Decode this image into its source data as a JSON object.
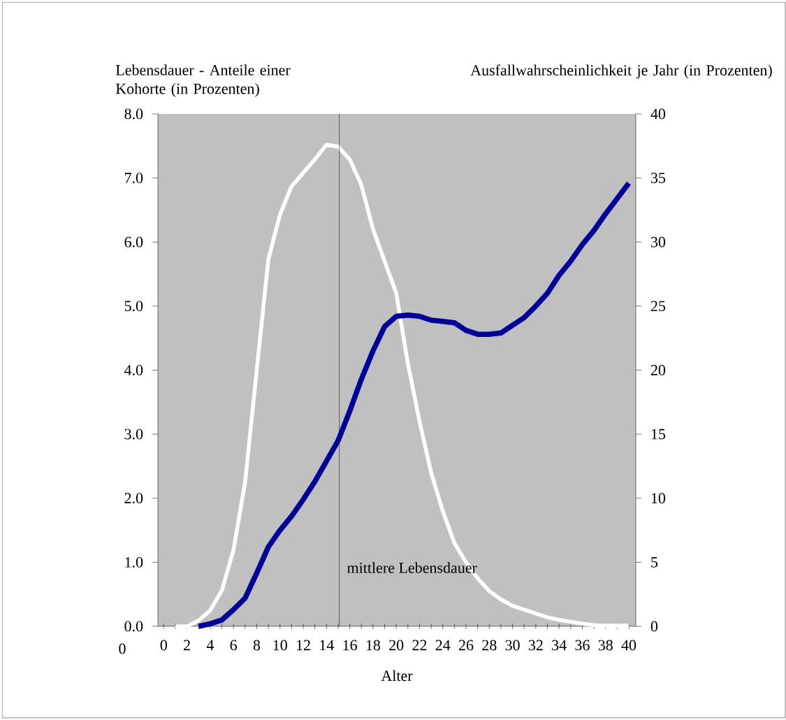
{
  "chart_data": {
    "type": "line",
    "ylabel": "Lebensdauer - Anteile einer Kohorte (in Prozenten)",
    "y2label": "Ausfallwahrscheinlichkeit je Jahr (in Prozenten)",
    "xlabel": "Alter",
    "xlim": [
      -0.5,
      40.6
    ],
    "xticks": [
      0,
      {
        "value": 1,
        "label": null
      },
      2,
      {
        "value": 3,
        "label": null
      },
      4,
      {
        "value": 5,
        "label": null
      },
      6,
      {
        "value": 7,
        "label": null
      },
      8,
      {
        "value": 9,
        "label": null
      },
      10,
      {
        "value": 11,
        "label": null
      },
      12,
      {
        "value": 13,
        "label": null
      },
      14,
      {
        "value": 15,
        "label": null
      },
      16,
      {
        "value": 17,
        "label": null
      },
      18,
      {
        "value": 19,
        "label": null
      },
      20,
      {
        "value": 21,
        "label": null
      },
      22,
      {
        "value": 23,
        "label": null
      },
      24,
      {
        "value": 25,
        "label": null
      },
      26,
      {
        "value": 27,
        "label": null
      },
      28,
      {
        "value": 29,
        "label": null
      },
      30,
      {
        "value": 31,
        "label": null
      },
      32,
      {
        "value": 33,
        "label": null
      },
      34,
      {
        "value": 35,
        "label": null
      },
      36,
      {
        "value": 37,
        "label": null
      },
      38,
      {
        "value": 39,
        "label": null
      },
      40
    ],
    "ylim": [
      0,
      8
    ],
    "yticks": [
      {
        "value": 0,
        "label": "0.0"
      },
      {
        "value": 1,
        "label": "1.0"
      },
      {
        "value": 2,
        "label": "2.0"
      },
      {
        "value": 3,
        "label": "3.0"
      },
      {
        "value": 4,
        "label": "4.0"
      },
      {
        "value": 5,
        "label": "5.0"
      },
      {
        "value": 6,
        "label": "6.0"
      },
      {
        "value": 7,
        "label": "7.0"
      },
      {
        "value": 8,
        "label": "8.0"
      }
    ],
    "y2lim": [
      0,
      40
    ],
    "y2ticks": [
      0,
      5,
      10,
      15,
      20,
      25,
      30,
      35,
      40
    ],
    "series": [
      {
        "color": "#ffffff",
        "x": [
          1,
          2,
          3,
          4,
          5,
          6,
          7,
          8,
          9,
          10,
          11,
          12,
          13,
          14,
          15,
          16,
          17,
          18,
          19,
          20,
          21,
          22,
          23,
          24,
          25,
          26,
          27,
          28,
          29,
          30,
          31,
          32,
          33,
          34,
          35,
          36,
          37,
          38,
          39,
          40
        ],
        "values": [
          0,
          0,
          0.09,
          0.25,
          0.56,
          1.19,
          2.25,
          4.0,
          5.73,
          6.43,
          6.87,
          7.08,
          7.29,
          7.52,
          7.49,
          7.29,
          6.89,
          6.2,
          5.7,
          5.2,
          4.1,
          3.2,
          2.4,
          1.8,
          1.3,
          1.0,
          0.75,
          0.55,
          0.42,
          0.32,
          0.26,
          0.2,
          0.14,
          0.1,
          0.07,
          0.04,
          0.02,
          0.01,
          0.01,
          0.01
        ]
      },
      {
        "color": "#000099",
        "axis": "y2",
        "x": [
          3,
          4,
          5,
          6,
          7,
          8,
          9,
          10,
          11,
          12,
          13,
          14,
          15,
          16,
          17,
          18,
          19,
          20,
          21,
          22,
          23,
          24,
          25,
          26,
          27,
          28,
          29,
          30,
          31,
          32,
          33,
          34,
          35,
          36,
          37,
          38,
          39,
          40
        ],
        "values": [
          0,
          0.2,
          0.5,
          1.3,
          2.2,
          4.15,
          6.2,
          7.5,
          8.6,
          9.9,
          11.3,
          12.9,
          14.5,
          16.8,
          19.3,
          21.5,
          23.4,
          24.2,
          24.3,
          24.2,
          23.9,
          23.8,
          23.7,
          23.1,
          22.8,
          22.8,
          22.9,
          23.5,
          24.1,
          25.0,
          26.0,
          27.4,
          28.5,
          29.8,
          30.9,
          32.2,
          33.4,
          34.6
        ]
      }
    ],
    "ref_lines": [
      {
        "axis": "x",
        "value": 15.1,
        "label": "mittlere Lebensdauer",
        "color": "#000000"
      }
    ],
    "annotations": [
      "0"
    ]
  }
}
